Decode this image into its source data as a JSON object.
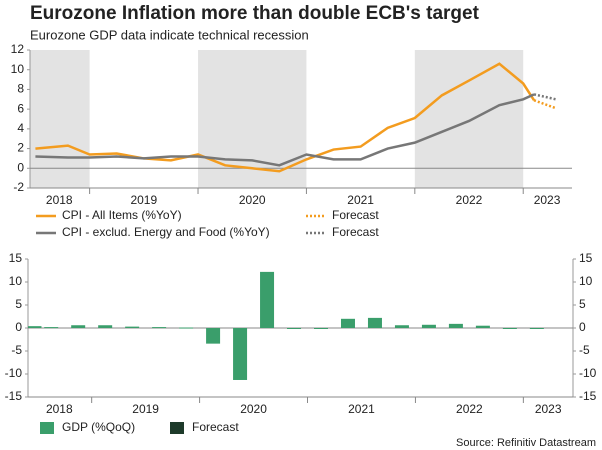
{
  "title": "Eurozone Inflation more than double ECB's target",
  "subtitle": "Eurozone GDP data indicate technical recession",
  "source": "Source: Refinitiv Datastream",
  "chart_data": [
    {
      "type": "line",
      "xlim": [
        2018.45,
        2023.45
      ],
      "ylim": [
        -2,
        12
      ],
      "yticks": [
        -2,
        0,
        2,
        4,
        6,
        8,
        10,
        12
      ],
      "xticks": [
        {
          "value": 2018.72,
          "label": "2018"
        },
        {
          "value": 2019.5,
          "label": "2019"
        },
        {
          "value": 2020.5,
          "label": "2020"
        },
        {
          "value": 2021.5,
          "label": "2021"
        },
        {
          "value": 2022.5,
          "label": "2022"
        },
        {
          "value": 2023.22,
          "label": "2023"
        }
      ],
      "x": [
        2018.5,
        2018.8,
        2019.0,
        2019.25,
        2019.5,
        2019.75,
        2020.0,
        2020.25,
        2020.5,
        2020.75,
        2021.0,
        2021.25,
        2021.5,
        2021.75,
        2022.0,
        2022.25,
        2022.5,
        2022.78,
        2023.0,
        2023.1,
        2023.3
      ],
      "series": [
        {
          "name": "CPI - All Items (%YoY)",
          "color": "#f39c1f",
          "dashed": false,
          "values": [
            2.0,
            2.3,
            1.4,
            1.5,
            1.0,
            0.8,
            1.4,
            0.3,
            0.0,
            -0.3,
            0.9,
            1.9,
            2.2,
            4.1,
            5.1,
            7.4,
            8.9,
            10.6,
            8.6,
            6.9,
            null
          ]
        },
        {
          "name": "CPI - exclud. Energy and Food (%YoY)",
          "color": "#777777",
          "dashed": false,
          "values": [
            1.2,
            1.1,
            1.1,
            1.2,
            1.0,
            1.2,
            1.2,
            0.9,
            0.8,
            0.3,
            1.4,
            0.9,
            0.9,
            2.0,
            2.6,
            3.7,
            4.8,
            6.4,
            7.0,
            7.5,
            null
          ]
        },
        {
          "name": "Forecast",
          "color": "#f39c1f",
          "dashed": true,
          "values": [
            null,
            null,
            null,
            null,
            null,
            null,
            null,
            null,
            null,
            null,
            null,
            null,
            null,
            null,
            null,
            null,
            null,
            null,
            null,
            6.9,
            6.1
          ]
        },
        {
          "name": "Forecast",
          "color": "#777777",
          "dashed": true,
          "values": [
            null,
            null,
            null,
            null,
            null,
            null,
            null,
            null,
            null,
            null,
            null,
            null,
            null,
            null,
            null,
            null,
            null,
            null,
            null,
            7.5,
            7.0
          ]
        }
      ]
    },
    {
      "type": "bar",
      "xlim": [
        2018.41,
        2023.46
      ],
      "ylim": [
        -15,
        15
      ],
      "yticks": [
        -15,
        -10,
        -5,
        0,
        5,
        10,
        15
      ],
      "y2lim": [
        -15,
        15
      ],
      "y2ticks": [
        -15,
        -10,
        -5,
        0,
        5,
        10,
        15
      ],
      "xticks": [
        {
          "value": 2018.7,
          "label": "2018"
        },
        {
          "value": 2019.5,
          "label": "2019"
        },
        {
          "value": 2020.5,
          "label": "2020"
        },
        {
          "value": 2021.5,
          "label": "2021"
        },
        {
          "value": 2022.5,
          "label": "2022"
        },
        {
          "value": 2023.23,
          "label": "2023"
        }
      ],
      "x": [
        2018.47,
        2018.625,
        2018.875,
        2019.125,
        2019.375,
        2019.625,
        2019.875,
        2020.125,
        2020.375,
        2020.625,
        2020.875,
        2021.125,
        2021.375,
        2021.625,
        2021.875,
        2022.125,
        2022.375,
        2022.625,
        2022.875,
        2023.125
      ],
      "series": [
        {
          "name": "GDP (%QoQ)",
          "color": "#3a9e6b",
          "values": [
            0.4,
            0.2,
            0.6,
            0.6,
            0.3,
            0.2,
            0.1,
            -3.4,
            -11.3,
            12.2,
            -0.1,
            -0.1,
            2.0,
            2.2,
            0.6,
            0.7,
            0.9,
            0.5,
            -0.1,
            -0.1
          ]
        },
        {
          "name": "Forecast",
          "color": "#1d3a2a",
          "values": [
            null,
            null,
            null,
            null,
            null,
            null,
            null,
            null,
            null,
            null,
            null,
            null,
            null,
            null,
            null,
            null,
            null,
            null,
            null,
            null
          ]
        }
      ]
    }
  ]
}
